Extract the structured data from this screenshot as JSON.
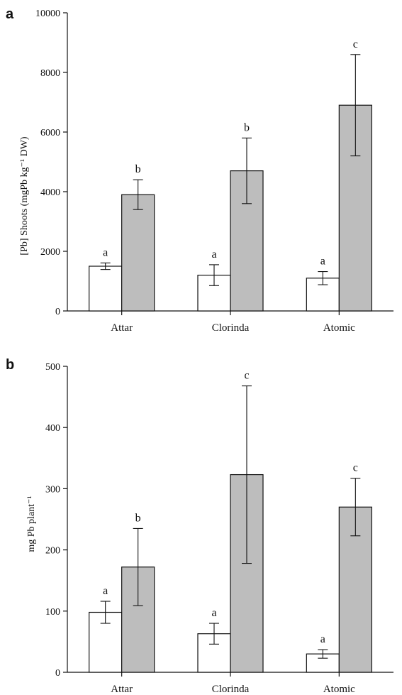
{
  "chart_data": [
    {
      "type": "bar",
      "panel": "a",
      "title": "",
      "xlabel": "",
      "ylabel": "[Pb] Shoots (mgPb kg⁻¹ DW)",
      "ylim": [
        0,
        10000
      ],
      "yticks": [
        0,
        2000,
        4000,
        6000,
        8000,
        10000
      ],
      "categories": [
        "Attar",
        "Clorinda",
        "Atomic"
      ],
      "series": [
        {
          "color": "#ffffff",
          "values": [
            1500,
            1200,
            1100
          ],
          "errors": [
            110,
            350,
            220
          ],
          "letters": [
            "a",
            "a",
            "a"
          ]
        },
        {
          "color": "#bdbdbd",
          "values": [
            3900,
            4700,
            6900
          ],
          "errors": [
            500,
            1100,
            1700
          ],
          "letters": [
            "b",
            "b",
            "c"
          ]
        }
      ]
    },
    {
      "type": "bar",
      "panel": "b",
      "title": "",
      "xlabel": "",
      "ylabel": "mg  Pb plant⁻¹",
      "ylim": [
        0,
        500
      ],
      "yticks": [
        0,
        100,
        200,
        300,
        400,
        500
      ],
      "categories": [
        "Attar",
        "Clorinda",
        "Atomic"
      ],
      "series": [
        {
          "color": "#ffffff",
          "values": [
            98,
            63,
            30
          ],
          "errors": [
            18,
            17,
            7
          ],
          "letters": [
            "a",
            "a",
            "a"
          ]
        },
        {
          "color": "#bdbdbd",
          "values": [
            172,
            323,
            270
          ],
          "errors": [
            63,
            145,
            47
          ],
          "letters": [
            "b",
            "c",
            "c"
          ]
        }
      ]
    }
  ]
}
